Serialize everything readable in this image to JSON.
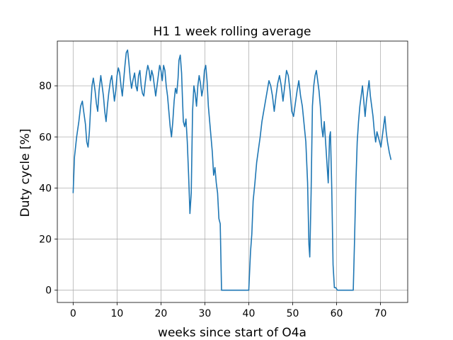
{
  "chart_data": {
    "type": "line",
    "title": "H1 1 week rolling average",
    "xlabel": "weeks since start of O4a",
    "ylabel": "Duty cycle [%]",
    "xlim": [
      -3.6,
      76.2
    ],
    "ylim": [
      -4.8,
      97.5
    ],
    "xticks": [
      0,
      10,
      20,
      30,
      40,
      50,
      60,
      70
    ],
    "yticks": [
      0,
      20,
      40,
      60,
      80
    ],
    "grid": true,
    "series": [
      {
        "color": "#1f77b4",
        "points": [
          [
            0,
            38
          ],
          [
            0.3,
            52
          ],
          [
            0.8,
            60
          ],
          [
            1.3,
            66
          ],
          [
            1.7,
            72
          ],
          [
            2.1,
            74
          ],
          [
            2.4,
            70
          ],
          [
            2.8,
            65
          ],
          [
            3.1,
            58
          ],
          [
            3.4,
            56
          ],
          [
            3.7,
            62
          ],
          [
            4.0,
            72
          ],
          [
            4.3,
            80
          ],
          [
            4.6,
            83
          ],
          [
            5.0,
            78
          ],
          [
            5.3,
            73
          ],
          [
            5.6,
            70
          ],
          [
            5.9,
            78
          ],
          [
            6.3,
            84
          ],
          [
            6.6,
            80
          ],
          [
            6.9,
            76
          ],
          [
            7.2,
            70
          ],
          [
            7.5,
            66
          ],
          [
            7.8,
            72
          ],
          [
            8.1,
            77
          ],
          [
            8.5,
            82
          ],
          [
            8.8,
            84
          ],
          [
            9.1,
            79
          ],
          [
            9.4,
            74
          ],
          [
            9.7,
            78
          ],
          [
            10.0,
            84
          ],
          [
            10.3,
            87
          ],
          [
            10.6,
            85
          ],
          [
            10.9,
            80
          ],
          [
            11.2,
            76
          ],
          [
            11.5,
            82
          ],
          [
            11.8,
            88
          ],
          [
            12.1,
            93
          ],
          [
            12.4,
            94
          ],
          [
            12.7,
            89
          ],
          [
            13.0,
            83
          ],
          [
            13.3,
            79
          ],
          [
            13.6,
            82
          ],
          [
            14.0,
            85
          ],
          [
            14.3,
            80
          ],
          [
            14.6,
            78
          ],
          [
            14.9,
            84
          ],
          [
            15.2,
            86
          ],
          [
            15.5,
            80
          ],
          [
            15.8,
            77
          ],
          [
            16.1,
            76
          ],
          [
            16.4,
            81
          ],
          [
            16.7,
            85
          ],
          [
            17.0,
            88
          ],
          [
            17.3,
            86
          ],
          [
            17.6,
            82
          ],
          [
            17.9,
            86
          ],
          [
            18.2,
            84
          ],
          [
            18.5,
            80
          ],
          [
            18.8,
            76
          ],
          [
            19.1,
            80
          ],
          [
            19.4,
            84
          ],
          [
            19.7,
            88
          ],
          [
            20.0,
            86
          ],
          [
            20.3,
            82
          ],
          [
            20.6,
            88
          ],
          [
            20.9,
            86
          ],
          [
            21.2,
            80
          ],
          [
            21.5,
            76
          ],
          [
            21.8,
            70
          ],
          [
            22.1,
            64
          ],
          [
            22.4,
            60
          ],
          [
            22.7,
            66
          ],
          [
            23.0,
            74
          ],
          [
            23.3,
            79
          ],
          [
            23.6,
            77
          ],
          [
            23.9,
            83
          ],
          [
            24.1,
            90
          ],
          [
            24.4,
            92
          ],
          [
            24.7,
            85
          ],
          [
            24.9,
            75
          ],
          [
            25.1,
            66
          ],
          [
            25.4,
            64
          ],
          [
            25.7,
            67
          ],
          [
            26.0,
            58
          ],
          [
            26.3,
            45
          ],
          [
            26.6,
            30
          ],
          [
            26.9,
            38
          ],
          [
            27.2,
            70
          ],
          [
            27.5,
            80
          ],
          [
            27.8,
            77
          ],
          [
            28.1,
            72
          ],
          [
            28.4,
            80
          ],
          [
            28.7,
            84
          ],
          [
            29.0,
            81
          ],
          [
            29.3,
            76
          ],
          [
            29.6,
            79
          ],
          [
            29.9,
            86
          ],
          [
            30.2,
            88
          ],
          [
            30.5,
            82
          ],
          [
            30.8,
            72
          ],
          [
            31.1,
            66
          ],
          [
            31.4,
            60
          ],
          [
            31.7,
            54
          ],
          [
            32.0,
            45
          ],
          [
            32.3,
            48
          ],
          [
            32.6,
            42
          ],
          [
            32.9,
            38
          ],
          [
            33.2,
            28
          ],
          [
            33.5,
            26
          ],
          [
            33.8,
            0
          ],
          [
            34.2,
            0
          ],
          [
            40.0,
            0
          ],
          [
            40.4,
            15
          ],
          [
            40.7,
            22
          ],
          [
            41.0,
            35
          ],
          [
            41.4,
            42
          ],
          [
            41.8,
            50
          ],
          [
            42.2,
            55
          ],
          [
            42.6,
            60
          ],
          [
            43.0,
            66
          ],
          [
            43.4,
            70
          ],
          [
            43.8,
            74
          ],
          [
            44.2,
            78
          ],
          [
            44.6,
            82
          ],
          [
            45.0,
            80
          ],
          [
            45.4,
            76
          ],
          [
            45.8,
            70
          ],
          [
            46.2,
            76
          ],
          [
            46.6,
            81
          ],
          [
            47.0,
            84
          ],
          [
            47.4,
            80
          ],
          [
            47.8,
            74
          ],
          [
            48.2,
            80
          ],
          [
            48.6,
            86
          ],
          [
            49.0,
            84
          ],
          [
            49.4,
            78
          ],
          [
            49.8,
            70
          ],
          [
            50.2,
            68
          ],
          [
            50.6,
            73
          ],
          [
            51.0,
            78
          ],
          [
            51.4,
            82
          ],
          [
            51.8,
            76
          ],
          [
            52.2,
            72
          ],
          [
            52.6,
            65
          ],
          [
            53.0,
            58
          ],
          [
            53.4,
            42
          ],
          [
            53.7,
            18
          ],
          [
            53.9,
            13
          ],
          [
            54.2,
            38
          ],
          [
            54.5,
            72
          ],
          [
            54.8,
            80
          ],
          [
            55.1,
            84
          ],
          [
            55.4,
            86
          ],
          [
            55.7,
            82
          ],
          [
            56.0,
            78
          ],
          [
            56.3,
            72
          ],
          [
            56.6,
            64
          ],
          [
            56.9,
            60
          ],
          [
            57.2,
            66
          ],
          [
            57.5,
            58
          ],
          [
            57.8,
            50
          ],
          [
            58.1,
            42
          ],
          [
            58.4,
            60
          ],
          [
            58.6,
            62
          ],
          [
            58.9,
            40
          ],
          [
            59.2,
            10
          ],
          [
            59.5,
            1
          ],
          [
            59.8,
            1
          ],
          [
            60.2,
            0
          ],
          [
            63.8,
            0
          ],
          [
            64.1,
            20
          ],
          [
            64.4,
            42
          ],
          [
            64.7,
            58
          ],
          [
            65.0,
            66
          ],
          [
            65.3,
            72
          ],
          [
            65.6,
            76
          ],
          [
            65.9,
            80
          ],
          [
            66.2,
            74
          ],
          [
            66.5,
            68
          ],
          [
            66.8,
            74
          ],
          [
            67.1,
            78
          ],
          [
            67.4,
            82
          ],
          [
            67.7,
            76
          ],
          [
            68.0,
            72
          ],
          [
            68.3,
            68
          ],
          [
            68.6,
            62
          ],
          [
            68.9,
            58
          ],
          [
            69.2,
            62
          ],
          [
            69.5,
            60
          ],
          [
            69.8,
            58
          ],
          [
            70.1,
            56
          ],
          [
            70.4,
            60
          ],
          [
            70.7,
            64
          ],
          [
            71.0,
            68
          ],
          [
            71.3,
            62
          ],
          [
            71.6,
            58
          ],
          [
            72.0,
            54
          ],
          [
            72.4,
            51
          ]
        ]
      }
    ]
  }
}
